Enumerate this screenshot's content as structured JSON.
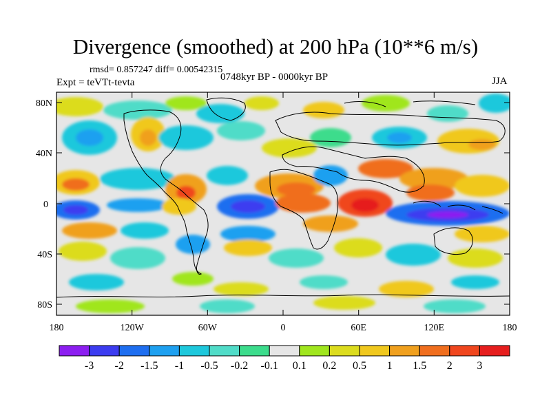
{
  "title": "Divergence (smoothed) at 200 hPa (10**6 m/s)",
  "stats": "rmsd= 0.857247 diff= 0.00542315",
  "experiment": "Expt = teVTt-tevta",
  "period": "0748kyr BP - 0000kyr BP",
  "season": "JJA",
  "lat_labels": [
    "80N",
    "40N",
    "0",
    "40S",
    "80S"
  ],
  "lon_labels": [
    "180",
    "120W",
    "60W",
    "0",
    "60E",
    "120E",
    "180"
  ],
  "colorbar": {
    "colors": [
      "#8c1ef0",
      "#3c3cf0",
      "#1e6ef0",
      "#1ea0f0",
      "#1ec8dc",
      "#50dcc8",
      "#3cdc8c",
      "#e6e6e6",
      "#a0e61e",
      "#dcdc1e",
      "#f0c81e",
      "#f0a01e",
      "#f06e1e",
      "#f0461e",
      "#e61e1e"
    ],
    "labels": [
      "-3",
      "-2",
      "-1.5",
      "-1",
      "-0.5",
      "-0.2",
      "-0.1",
      "0.1",
      "0.2",
      "0.5",
      "1",
      "1.5",
      "2",
      "3"
    ]
  },
  "colors": {
    "land_outline": "#000000",
    "background": "#e6e6e6"
  }
}
